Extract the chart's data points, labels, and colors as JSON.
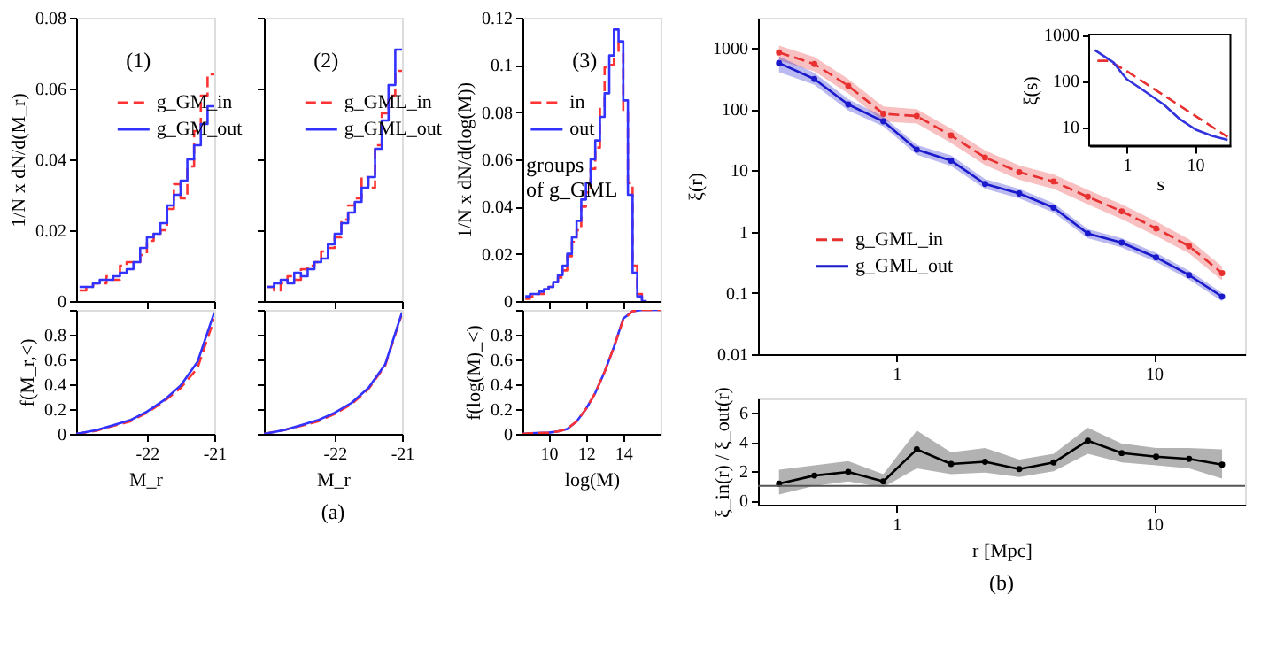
{
  "chart_data": [
    {
      "type": "histogram",
      "bins": [
        -23.0,
        -22.9,
        -22.8,
        -22.7,
        -22.6,
        -22.5,
        -22.4,
        -22.3,
        -22.2,
        -22.1,
        -22.0,
        -21.9,
        -21.8,
        -21.7,
        -21.6,
        -21.5,
        -21.4,
        -21.3,
        -21.2,
        -21.1,
        -21.0
      ],
      "ylabel": "1/N x dN/d(M_r)",
      "xlim": [
        -23.05,
        -21
      ],
      "xticks": [
        -22,
        -21
      ],
      "ylim": [
        0,
        0.08
      ],
      "yticks": [
        0,
        0.02,
        0.04,
        0.06,
        0.08
      ],
      "tick_labels": "y",
      "legend": "top right",
      "annotations": [
        "(1)"
      ],
      "series": [
        {
          "name": "g_GM_in",
          "color": "#ff3333",
          "line_style": "dashed",
          "values": [
            0.003,
            0.004,
            0.005,
            0.005,
            0.007,
            0.006,
            0.01,
            0.011,
            0.011,
            0.013,
            0.017,
            0.019,
            0.02,
            0.026,
            0.033,
            0.029,
            0.038,
            0.048,
            0.058,
            0.064
          ]
        },
        {
          "name": "g_GM_out",
          "color": "#3333ff",
          "line_style": "solid",
          "values": [
            0.004,
            0.004,
            0.005,
            0.006,
            0.006,
            0.007,
            0.008,
            0.009,
            0.011,
            0.015,
            0.018,
            0.019,
            0.022,
            0.027,
            0.03,
            0.034,
            0.04,
            0.044,
            0.05,
            0.055
          ]
        }
      ]
    },
    {
      "type": "histogram",
      "bins": [
        -23.0,
        -22.9,
        -22.8,
        -22.7,
        -22.6,
        -22.5,
        -22.4,
        -22.3,
        -22.2,
        -22.1,
        -22.0,
        -21.9,
        -21.8,
        -21.7,
        -21.6,
        -21.5,
        -21.4,
        -21.3,
        -21.2,
        -21.1,
        -21.0
      ],
      "xlim": [
        -23.05,
        -21
      ],
      "xticks": [
        -22,
        -21
      ],
      "ylim": [
        0,
        0.08
      ],
      "yticks": [
        0,
        0.02,
        0.04,
        0.06,
        0.08
      ],
      "tick_labels": false,
      "legend": "top right",
      "annotations": [
        "(2)"
      ],
      "series": [
        {
          "name": "g_GML_in",
          "color": "#ff3333",
          "line_style": "dashed",
          "values": [
            0.004,
            0.003,
            0.005,
            0.007,
            0.006,
            0.009,
            0.01,
            0.011,
            0.014,
            0.015,
            0.018,
            0.023,
            0.027,
            0.029,
            0.035,
            0.032,
            0.044,
            0.053,
            0.058,
            0.065
          ]
        },
        {
          "name": "g_GML_out",
          "color": "#3333ff",
          "line_style": "solid",
          "values": [
            0.004,
            0.005,
            0.006,
            0.005,
            0.008,
            0.007,
            0.009,
            0.011,
            0.012,
            0.016,
            0.019,
            0.022,
            0.025,
            0.028,
            0.032,
            0.035,
            0.043,
            0.051,
            0.061,
            0.071
          ]
        }
      ]
    },
    {
      "type": "histogram",
      "bins": [
        8.75,
        9.0,
        9.25,
        9.5,
        9.75,
        10.0,
        10.25,
        10.5,
        10.75,
        11.0,
        11.25,
        11.5,
        11.75,
        12.0,
        12.25,
        12.5,
        12.75,
        13.0,
        13.25,
        13.5,
        13.75,
        14.0,
        14.25,
        14.5,
        14.75,
        15.0,
        15.25
      ],
      "ylabel": "1/N x dN/d(log(M))",
      "xlim": [
        8.6,
        16
      ],
      "xticks": [
        10,
        12,
        14
      ],
      "ylim": [
        0,
        0.12
      ],
      "yticks": [
        0,
        0.02,
        0.04,
        0.06,
        0.08,
        0.1,
        0.12
      ],
      "tick_labels": "y",
      "legend": "top left",
      "annotations": [
        "(3)",
        "groups\nof g_GML"
      ],
      "series": [
        {
          "name": "in",
          "color": "#ff3333",
          "line_style": "dashed",
          "values": [
            0.001,
            0.002,
            0.003,
            0.003,
            0.005,
            0.006,
            0.008,
            0.01,
            0.013,
            0.019,
            0.025,
            0.03,
            0.04,
            0.046,
            0.056,
            0.065,
            0.082,
            0.099,
            0.1,
            0.11,
            0.105,
            0.08,
            0.05,
            0.015,
            0.003,
            0.0
          ]
        },
        {
          "name": "out",
          "color": "#3333ff",
          "line_style": "solid",
          "values": [
            0.002,
            0.003,
            0.003,
            0.004,
            0.005,
            0.006,
            0.008,
            0.011,
            0.015,
            0.02,
            0.027,
            0.034,
            0.043,
            0.05,
            0.06,
            0.068,
            0.078,
            0.088,
            0.104,
            0.115,
            0.11,
            0.085,
            0.045,
            0.012,
            0.002,
            0.0
          ]
        }
      ]
    },
    {
      "type": "line",
      "x": [
        -23.05,
        -22.75,
        -22.5,
        -22.25,
        -22.0,
        -21.75,
        -21.5,
        -21.25,
        -21.0
      ],
      "xlabel": "M_r",
      "ylabel": "f(M_r,<)",
      "xlim": [
        -23.05,
        -21
      ],
      "xticks": [
        -22,
        -21
      ],
      "ylim": [
        0,
        1
      ],
      "yticks": [
        0,
        0.2,
        0.4,
        0.6,
        0.8,
        {
          "value": 1,
          "label": null
        }
      ],
      "series": [
        {
          "color": "#ff3333",
          "line_style": "dashed",
          "values": [
            0,
            0.025,
            0.065,
            0.1,
            0.17,
            0.26,
            0.37,
            0.53,
            0.93
          ]
        },
        {
          "color": "#3333ff",
          "line_style": "solid",
          "values": [
            0,
            0.03,
            0.07,
            0.11,
            0.18,
            0.27,
            0.39,
            0.58,
            0.98
          ]
        }
      ]
    },
    {
      "type": "line",
      "title": "(a)",
      "x": [
        -23.05,
        -22.75,
        -22.5,
        -22.25,
        -22.0,
        -21.75,
        -21.5,
        -21.25,
        -21.0
      ],
      "xlabel": "M_r",
      "xlim": [
        -23.05,
        -21
      ],
      "xticks": [
        -22,
        -21
      ],
      "ylim": [
        0,
        1
      ],
      "yticks": [
        0,
        0.2,
        0.4,
        0.6,
        0.8,
        1
      ],
      "tick_labels": "x",
      "series": [
        {
          "color": "#ff3333",
          "line_style": "dashed",
          "values": [
            0,
            0.03,
            0.065,
            0.1,
            0.16,
            0.24,
            0.36,
            0.55,
            0.97
          ]
        },
        {
          "color": "#3333ff",
          "line_style": "solid",
          "values": [
            0,
            0.03,
            0.07,
            0.11,
            0.17,
            0.25,
            0.37,
            0.56,
            0.98
          ]
        }
      ]
    },
    {
      "type": "line",
      "x": [
        8.6,
        9,
        10,
        10.5,
        11,
        11.5,
        12,
        12.5,
        13,
        13.5,
        14,
        14.5,
        15,
        16
      ],
      "xlabel": "log(M)",
      "ylabel": "f(log(M)_<)",
      "xlim": [
        8.6,
        16
      ],
      "xticks": [
        10,
        12,
        14
      ],
      "ylim": [
        0,
        1
      ],
      "yticks": [
        0,
        0.2,
        0.4,
        0.6,
        0.8,
        {
          "value": 1,
          "label": null
        }
      ],
      "series": [
        {
          "color": "#3333ff",
          "line_style": "solid",
          "values": [
            0,
            0.005,
            0.01,
            0.02,
            0.04,
            0.1,
            0.2,
            0.33,
            0.5,
            0.7,
            0.93,
            0.99,
            1,
            1
          ]
        },
        {
          "color": "#ff3333",
          "line_style": "dashed",
          "values": [
            0,
            0.005,
            0.01,
            0.02,
            0.04,
            0.1,
            0.2,
            0.33,
            0.5,
            0.7,
            0.92,
            0.99,
            1,
            1
          ]
        }
      ]
    },
    {
      "type": "line",
      "log": "xy",
      "marker": "circle",
      "legend": "bottom left",
      "ylabel": "ξ(r)",
      "x": [
        0.35,
        0.48,
        0.65,
        0.89,
        1.2,
        1.63,
        2.21,
        3.0,
        4.08,
        5.54,
        7.5,
        10.2,
        13.7,
        18.4
      ],
      "xlim": [
        0.29,
        22.6
      ],
      "xticks": [
        1,
        10
      ],
      "ylim": [
        0.01,
        3100
      ],
      "yticks": [
        0.01,
        0.1,
        1,
        10,
        100,
        1000
      ],
      "series": [
        {
          "name": "g_GML_in",
          "color": "#e83030",
          "line_style": "dashed",
          "values": [
            840,
            545,
            240,
            84,
            77,
            37,
            16.2,
            9.3,
            6.6,
            3.7,
            2.15,
            1.13,
            0.58,
            0.21
          ],
          "lower": [
            630,
            410,
            180,
            63,
            58,
            28,
            12.2,
            7.0,
            5.0,
            2.8,
            1.6,
            0.85,
            0.44,
            0.16
          ],
          "upper": [
            1090,
            710,
            310,
            110,
            100,
            48,
            21,
            12.1,
            8.6,
            4.8,
            2.8,
            1.47,
            0.75,
            0.27
          ]
        },
        {
          "name": "g_GML_out",
          "color": "#1a1acc",
          "line_style": "solid",
          "values": [
            565,
            310,
            119,
            63,
            21.8,
            14.4,
            6.0,
            4.2,
            2.46,
            0.93,
            0.66,
            0.38,
            0.195,
            0.087
          ],
          "lower": [
            400,
            250,
            95,
            52,
            18,
            11.8,
            5.0,
            3.5,
            2.05,
            0.78,
            0.55,
            0.32,
            0.165,
            0.073
          ],
          "upper": [
            720,
            390,
            145,
            75,
            26,
            17.5,
            7.2,
            5.0,
            2.9,
            1.1,
            0.78,
            0.45,
            0.23,
            0.1
          ]
        }
      ]
    },
    {
      "type": "line",
      "log": "xy",
      "xlabel": "s",
      "ylabel": "ξ(s)",
      "xlim": [
        0.28,
        33
      ],
      "xticks": [
        1,
        10
      ],
      "ylim": [
        3.9,
        1000
      ],
      "yticks": [
        10,
        100,
        1000
      ],
      "series": [
        {
          "color": "#e83030",
          "line_style": "dashed",
          "x": [
            0.37,
            0.55,
            1,
            30
          ],
          "values": [
            270,
            270,
            160,
            6.0
          ]
        },
        {
          "color": "#3333dd",
          "line_style": "solid",
          "x": [
            0.34,
            0.64,
            0.84,
            1,
            1.71,
            3.5,
            6.0,
            10.3,
            17.8,
            30
          ],
          "values": [
            460,
            247,
            146,
            107,
            63,
            30,
            14.5,
            8.6,
            6.3,
            5.2
          ]
        }
      ]
    },
    {
      "type": "line",
      "log": "x",
      "marker": "circle",
      "title": "(b)",
      "xlabel": "r [Mpc]",
      "ylabel": "ξ_in(r) / ξ_out(r)",
      "x": [
        0.35,
        0.48,
        0.65,
        0.89,
        1.2,
        1.63,
        2.21,
        3.0,
        4.08,
        5.54,
        7.5,
        10.2,
        13.7,
        18.4
      ],
      "xlim": [
        0.29,
        22.6
      ],
      "xticks": [
        1,
        10
      ],
      "ylim": [
        -0.3,
        7
      ],
      "yticks": [
        0,
        2,
        4,
        6
      ],
      "ref_lines": [
        {
          "axis": "y",
          "value": 1,
          "color": "#555555"
        }
      ],
      "series": [
        {
          "color": "#000000",
          "line_style": "solid",
          "values": [
            1.15,
            1.7,
            1.95,
            1.3,
            3.5,
            2.5,
            2.65,
            2.15,
            2.6,
            4.1,
            3.25,
            3.0,
            2.85,
            2.45
          ],
          "lower": [
            0.4,
            1.0,
            1.3,
            0.9,
            2.2,
            1.8,
            1.9,
            1.6,
            2.0,
            3.2,
            2.6,
            2.4,
            2.2,
            1.5
          ],
          "upper": [
            2.1,
            2.4,
            2.7,
            1.8,
            4.8,
            3.3,
            3.6,
            2.8,
            3.2,
            5.0,
            3.9,
            3.6,
            3.6,
            3.5
          ]
        }
      ]
    }
  ]
}
